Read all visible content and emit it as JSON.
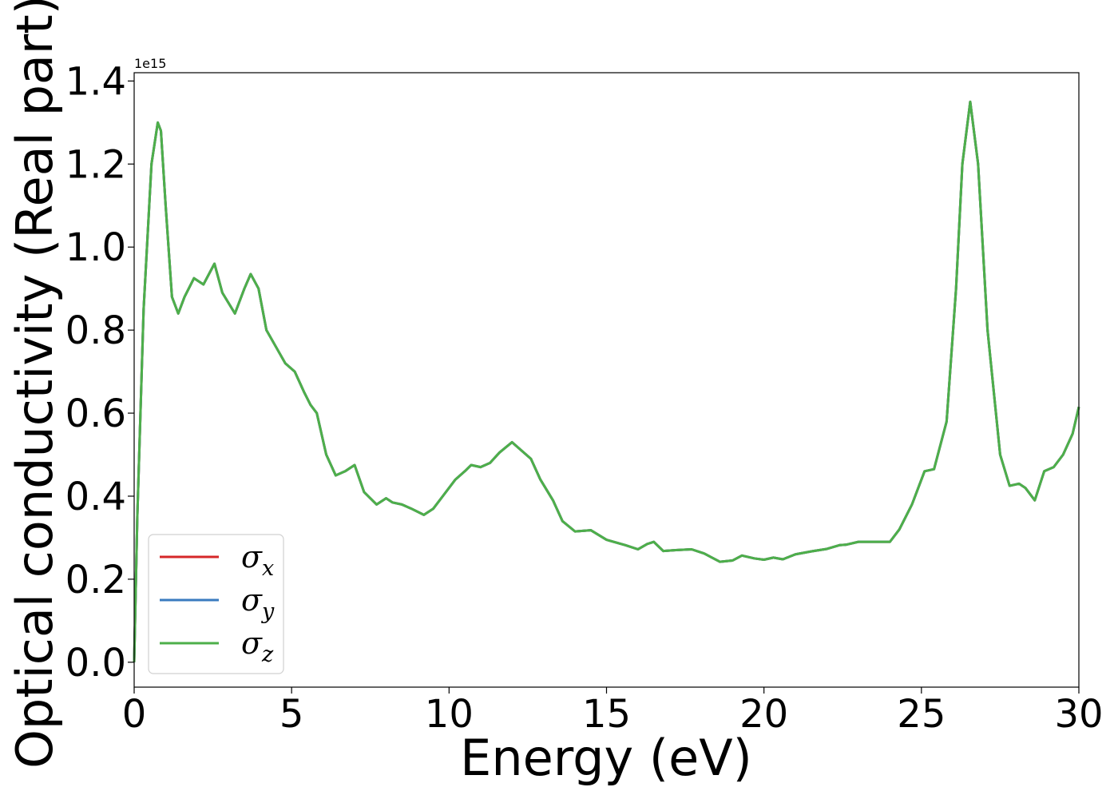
{
  "chart_data": {
    "type": "line",
    "xlabel": "Energy (eV)",
    "ylabel": "Optical conductivity (Real part)",
    "y_offset_text": "1e15",
    "xlim": [
      0,
      30
    ],
    "ylim": [
      -0.06,
      1.42
    ],
    "x_ticks": [
      0,
      5,
      10,
      15,
      20,
      25,
      30
    ],
    "x_tick_labels": [
      "0",
      "5",
      "10",
      "15",
      "20",
      "25",
      "30"
    ],
    "y_ticks": [
      0.0,
      0.2,
      0.4,
      0.6,
      0.8,
      1.0,
      1.2,
      1.4
    ],
    "y_tick_labels": [
      "0.0",
      "0.2",
      "0.4",
      "0.6",
      "0.8",
      "1.0",
      "1.2",
      "1.4"
    ],
    "grid": false,
    "legend_position": "lower-left",
    "series": [
      {
        "name": "σx",
        "symbol": "σ",
        "subscript": "x",
        "color": "#d62728"
      },
      {
        "name": "σy",
        "symbol": "σ",
        "subscript": "y",
        "color": "#3a7bbf"
      },
      {
        "name": "σz",
        "symbol": "σ",
        "subscript": "z",
        "color": "#4daf4a"
      }
    ],
    "x": [
      0,
      0.1,
      0.3,
      0.55,
      0.75,
      0.85,
      1.0,
      1.2,
      1.4,
      1.6,
      1.9,
      2.2,
      2.55,
      2.8,
      3.2,
      3.5,
      3.7,
      3.95,
      4.2,
      4.5,
      4.8,
      5.1,
      5.4,
      5.6,
      5.8,
      6.1,
      6.4,
      6.7,
      7.0,
      7.3,
      7.7,
      8.0,
      8.2,
      8.5,
      8.8,
      9.2,
      9.5,
      9.8,
      10.2,
      10.5,
      10.7,
      11.0,
      11.3,
      11.6,
      12.0,
      12.3,
      12.6,
      12.9,
      13.3,
      13.6,
      14.0,
      14.5,
      15.0,
      15.6,
      16.0,
      16.3,
      16.5,
      16.8,
      17.2,
      17.7,
      18.1,
      18.6,
      19.0,
      19.3,
      19.7,
      20.0,
      20.3,
      20.6,
      21.0,
      21.5,
      22.0,
      22.4,
      22.6,
      23.0,
      23.5,
      24.0,
      24.3,
      24.7,
      25.1,
      25.4,
      25.8,
      26.1,
      26.3,
      26.55,
      26.8,
      27.1,
      27.5,
      27.8,
      28.1,
      28.3,
      28.6,
      28.9,
      29.2,
      29.5,
      29.8,
      30.0
    ],
    "values": [
      0.0,
      0.35,
      0.85,
      1.2,
      1.3,
      1.28,
      1.1,
      0.88,
      0.84,
      0.88,
      0.925,
      0.91,
      0.96,
      0.89,
      0.84,
      0.9,
      0.935,
      0.9,
      0.8,
      0.76,
      0.72,
      0.7,
      0.65,
      0.62,
      0.6,
      0.5,
      0.45,
      0.46,
      0.475,
      0.41,
      0.38,
      0.395,
      0.385,
      0.38,
      0.37,
      0.355,
      0.37,
      0.4,
      0.44,
      0.46,
      0.475,
      0.47,
      0.48,
      0.505,
      0.53,
      0.51,
      0.49,
      0.44,
      0.39,
      0.34,
      0.315,
      0.318,
      0.295,
      0.282,
      0.272,
      0.285,
      0.29,
      0.268,
      0.27,
      0.272,
      0.262,
      0.242,
      0.245,
      0.257,
      0.25,
      0.247,
      0.252,
      0.248,
      0.26,
      0.267,
      0.273,
      0.282,
      0.283,
      0.29,
      0.29,
      0.29,
      0.32,
      0.38,
      0.46,
      0.465,
      0.58,
      0.9,
      1.2,
      1.35,
      1.2,
      0.8,
      0.5,
      0.425,
      0.43,
      0.42,
      0.39,
      0.46,
      0.47,
      0.5,
      0.55,
      0.615
    ]
  }
}
